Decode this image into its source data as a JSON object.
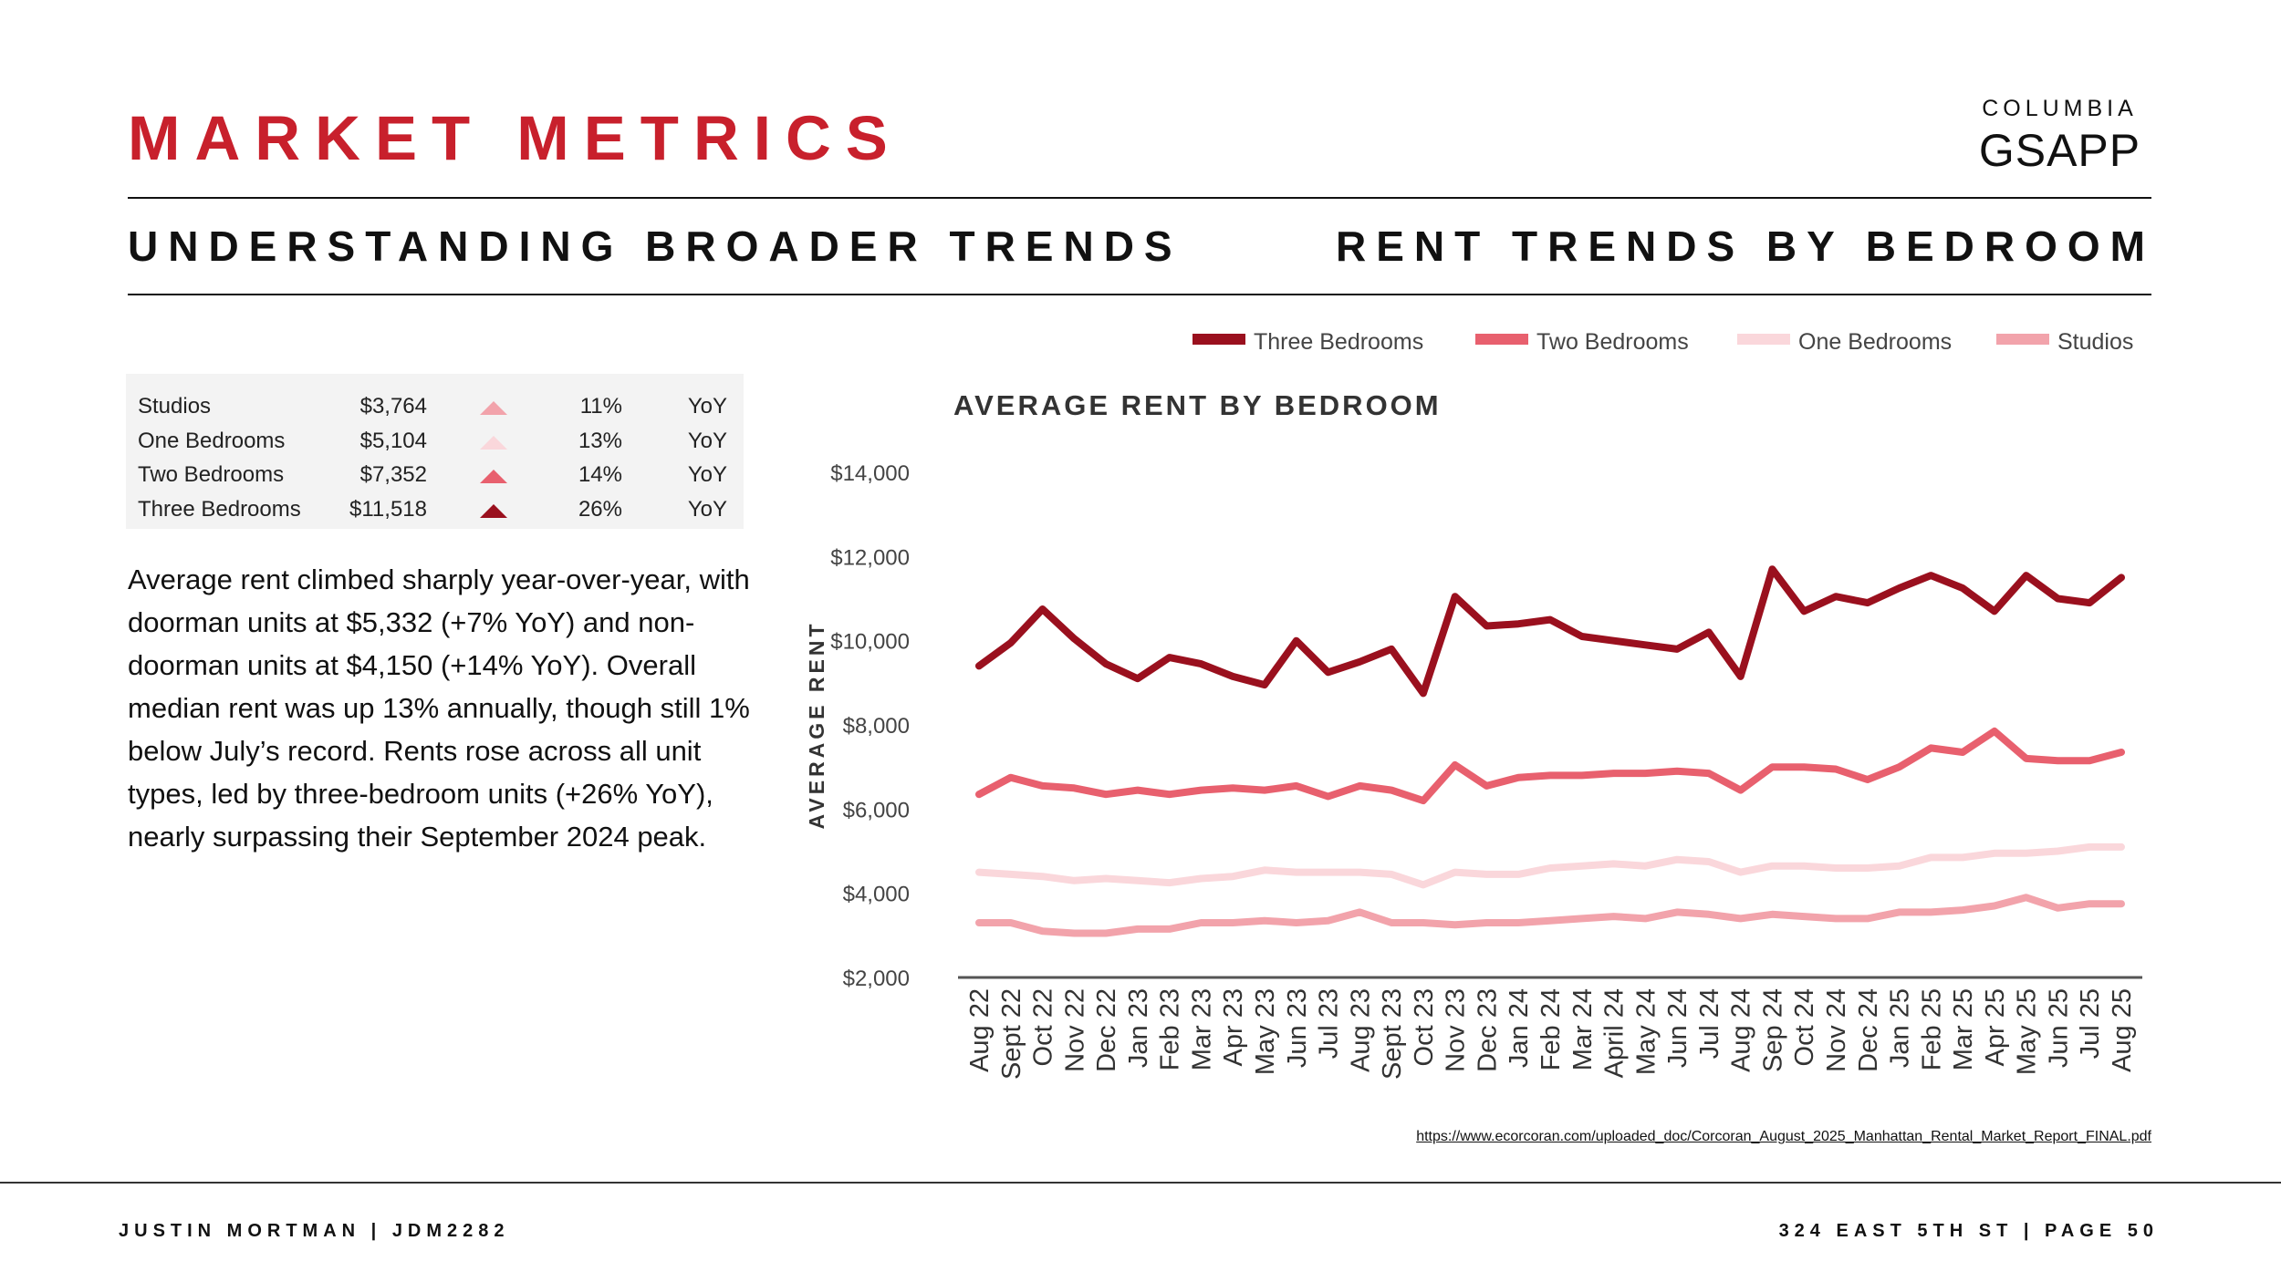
{
  "header": {
    "title": "MARKET METRICS",
    "subtitle_left": "UNDERSTANDING BROADER TRENDS",
    "subtitle_right": "RENT TRENDS BY BEDROOM"
  },
  "logo": {
    "line1": "COLUMBIA",
    "line2": "GSAPP"
  },
  "summary_table": {
    "rows": [
      {
        "label": "Studios",
        "value": "$3,764",
        "change": "11%",
        "period": "YoY",
        "arrow_color": "#f2a3ab"
      },
      {
        "label": "One Bedrooms",
        "value": "$5,104",
        "change": "13%",
        "period": "YoY",
        "arrow_color": "#fad7db"
      },
      {
        "label": "Two Bedrooms",
        "value": "$7,352",
        "change": "14%",
        "period": "YoY",
        "arrow_color": "#e8606e"
      },
      {
        "label": "Three Bedrooms",
        "value": "$11,518",
        "change": "26%",
        "period": "YoY",
        "arrow_color": "#9a101e"
      }
    ]
  },
  "body_text": "Average rent climbed sharply year-over-year, with doorman units at $5,332 (+7% YoY) and non-doorman units at $4,150 (+14% YoY). Overall median rent was up 13% annually, though still 1% below July’s record. Rents rose across all unit types, led by three-bedroom units (+26% YoY), nearly surpassing their September 2024 peak.",
  "chart_data": {
    "type": "line",
    "title": "AVERAGE RENT BY BEDROOM",
    "xlabel": "",
    "ylabel": "AVERAGE RENT",
    "ylim": [
      2000,
      14000
    ],
    "yticks": [
      2000,
      4000,
      6000,
      8000,
      10000,
      12000,
      14000
    ],
    "ytick_labels": [
      "$2,000",
      "$4,000",
      "$6,000",
      "$8,000",
      "$10,000",
      "$12,000",
      "$14,000"
    ],
    "grid": false,
    "legend_position": "top-right",
    "categories": [
      "Aug 22",
      "Sept 22",
      "Oct 22",
      "Nov 22",
      "Dec 22",
      "Jan 23",
      "Feb 23",
      "Mar 23",
      "Apr 23",
      "May 23",
      "Jun 23",
      "Jul 23",
      "Aug 23",
      "Sept 23",
      "Oct 23",
      "Nov 23",
      "Dec 23",
      "Jan 24",
      "Feb 24",
      "Mar 24",
      "April 24",
      "May 24",
      "Jun 24",
      "Jul 24",
      "Aug 24",
      "Sep 24",
      "Oct 24",
      "Nov 24",
      "Dec 24",
      "Jan 25",
      "Feb 25",
      "Mar 25",
      "Apr 25",
      "May 25",
      "Jun 25",
      "Jul 25",
      "Aug 25"
    ],
    "series": [
      {
        "name": "Three Bedrooms",
        "color": "#9a101e",
        "values": [
          9400,
          9950,
          10750,
          10050,
          9450,
          9100,
          9600,
          9450,
          9150,
          8950,
          10000,
          9250,
          9500,
          9800,
          8750,
          11050,
          10350,
          10400,
          10500,
          10100,
          10000,
          9900,
          9800,
          10200,
          9150,
          11700,
          10700,
          11050,
          10900,
          11250,
          11550,
          11250,
          10700,
          11550,
          11000,
          10900,
          11500
        ]
      },
      {
        "name": "Two Bedrooms",
        "color": "#e8606e",
        "values": [
          6350,
          6750,
          6550,
          6500,
          6350,
          6450,
          6350,
          6450,
          6500,
          6450,
          6550,
          6300,
          6550,
          6450,
          6200,
          7050,
          6550,
          6750,
          6800,
          6800,
          6850,
          6850,
          6900,
          6850,
          6450,
          7000,
          7000,
          6950,
          6700,
          7000,
          7450,
          7350,
          7850,
          7200,
          7150,
          7150,
          7350
        ]
      },
      {
        "name": "One Bedrooms",
        "color": "#fad7db",
        "values": [
          4500,
          4450,
          4400,
          4300,
          4350,
          4300,
          4250,
          4350,
          4400,
          4550,
          4500,
          4500,
          4500,
          4450,
          4200,
          4500,
          4450,
          4450,
          4600,
          4650,
          4700,
          4650,
          4800,
          4750,
          4500,
          4650,
          4650,
          4600,
          4600,
          4650,
          4850,
          4850,
          4950,
          4950,
          5000,
          5100,
          5100
        ]
      },
      {
        "name": "Studios",
        "color": "#f2a3ab",
        "values": [
          3300,
          3300,
          3100,
          3050,
          3050,
          3150,
          3150,
          3300,
          3300,
          3350,
          3300,
          3350,
          3550,
          3300,
          3300,
          3250,
          3300,
          3300,
          3350,
          3400,
          3450,
          3400,
          3550,
          3500,
          3400,
          3500,
          3450,
          3400,
          3400,
          3550,
          3550,
          3600,
          3700,
          3900,
          3650,
          3750,
          3750
        ]
      }
    ]
  },
  "source": "https://www.ecorcoran.com/uploaded_doc/Corcoran_August_2025_Manhattan_Rental_Market_Report_FINAL.pdf",
  "footer": {
    "left": "JUSTIN MORTMAN | JDM2282",
    "right": "324 EAST 5TH ST | PAGE 50"
  }
}
